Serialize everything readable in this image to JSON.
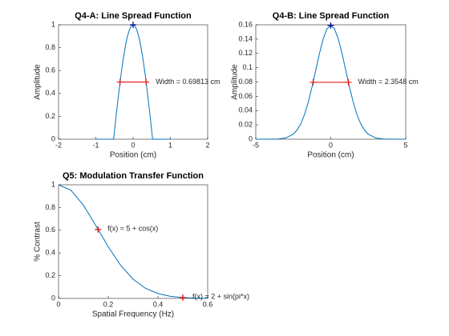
{
  "chart_data": [
    {
      "type": "line",
      "title": "Q4-A: Line Spread Function",
      "xlabel": "Position (cm)",
      "ylabel": "Amplitude",
      "xlim": [
        -2,
        2
      ],
      "xticks": [
        -2,
        -1,
        0,
        1,
        2
      ],
      "ylim": [
        0,
        1
      ],
      "yticks": [
        0,
        0.2,
        0.4,
        0.6,
        0.8,
        1
      ],
      "color": "#0072bd",
      "x": [
        -1,
        -0.5236,
        -0.45,
        -0.4,
        -0.35,
        -0.3,
        -0.25,
        -0.2,
        -0.15,
        -0.1,
        -0.05,
        0,
        0.05,
        0.1,
        0.15,
        0.2,
        0.25,
        0.3,
        0.35,
        0.4,
        0.45,
        0.5236,
        1
      ],
      "values": [
        0,
        0,
        0.219,
        0.3624,
        0.4976,
        0.6216,
        0.7317,
        0.8253,
        0.9004,
        0.9553,
        0.9888,
        1,
        0.9888,
        0.9553,
        0.9004,
        0.8253,
        0.7317,
        0.6216,
        0.4976,
        0.3624,
        0.219,
        0,
        0
      ],
      "peak": {
        "x": 0,
        "y": 1,
        "color": "#00008b"
      },
      "half_width": {
        "x": [
          -0.349,
          0.349
        ],
        "y": 0.5,
        "color": "#e00000",
        "label": "Width = 0.69813 cm"
      }
    },
    {
      "type": "line",
      "title": "Q4-B: Line Spread Function",
      "xlabel": "Position (cm)",
      "ylabel": "Amplitude",
      "xlim": [
        -5,
        5
      ],
      "xticks": [
        -5,
        0,
        5
      ],
      "ylim": [
        0,
        0.16
      ],
      "yticks": [
        0,
        0.02,
        0.04,
        0.06,
        0.08,
        0.1,
        0.12,
        0.14,
        0.16
      ],
      "color": "#0072bd",
      "x": [
        -5,
        -4.5,
        -4,
        -3.5,
        -3,
        -2.5,
        -2.25,
        -2,
        -1.75,
        -1.5,
        -1.25,
        -1,
        -0.75,
        -0.5,
        -0.25,
        0,
        0.25,
        0.5,
        0.75,
        1,
        1.25,
        1.5,
        1.75,
        2,
        2.25,
        2.5,
        3,
        3.5,
        4,
        4.5,
        5
      ],
      "values": [
        0,
        0,
        0.0001,
        0.0003,
        0.0018,
        0.007,
        0.0127,
        0.0215,
        0.0344,
        0.0517,
        0.0729,
        0.0965,
        0.1201,
        0.1405,
        0.1543,
        0.1592,
        0.1543,
        0.1405,
        0.1201,
        0.0965,
        0.0729,
        0.0517,
        0.0344,
        0.0215,
        0.0127,
        0.007,
        0.0018,
        0.0003,
        0.0001,
        0,
        0
      ],
      "peak": {
        "x": 0,
        "y": 0.1592,
        "color": "#00008b"
      },
      "half_width": {
        "x": [
          -1.1774,
          1.1774
        ],
        "y": 0.0796,
        "color": "#e00000",
        "label": "Width = 2.3548 cm"
      }
    },
    {
      "type": "line",
      "title": "Q5: Modulation Transfer Function",
      "xlabel": "Spatial Frequency (Hz)",
      "ylabel": "% Contrast",
      "xlim": [
        0,
        0.6
      ],
      "xticks": [
        0,
        0.2,
        0.4,
        0.6
      ],
      "ylim": [
        0,
        1
      ],
      "yticks": [
        0,
        0.2,
        0.4,
        0.6,
        0.8,
        1
      ],
      "color": "#0072bd",
      "x": [
        0,
        0.05,
        0.1,
        0.15,
        0.2,
        0.25,
        0.3,
        0.35,
        0.4,
        0.45,
        0.5,
        0.55,
        0.6
      ],
      "values": [
        1,
        0.9518,
        0.8209,
        0.6414,
        0.454,
        0.2912,
        0.1692,
        0.0891,
        0.0425,
        0.0184,
        0.0072,
        0.0026,
        0.0008
      ],
      "point_color": "#e00000",
      "points": [
        {
          "x": 0.159,
          "y": 0.6065,
          "label": "f(x) = 5 + cos(x)"
        },
        {
          "x": 0.5,
          "y": 0.0072,
          "label": "f(x) = 2 + sin(pi*x)"
        }
      ]
    }
  ]
}
